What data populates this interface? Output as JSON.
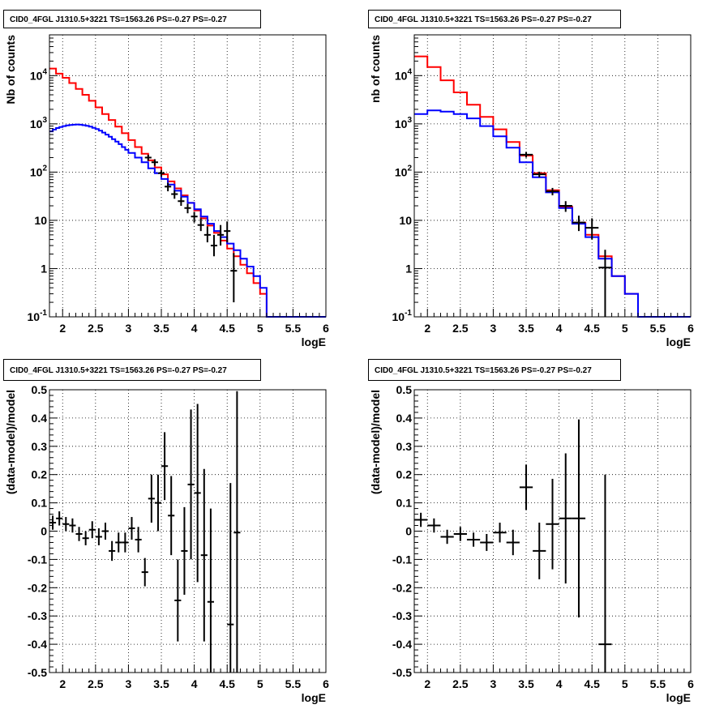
{
  "chart_data": [
    {
      "type": "line",
      "panel": "top-left",
      "title": "CID0_4FGL J1310.5+3221 TS=1563.26 PS=-0.27 PS=-0.27",
      "xlabel": "logE",
      "ylabel": "Nb of counts",
      "xlim": [
        1.8,
        6.0
      ],
      "ylim": [
        0.1,
        70000
      ],
      "yscale": "log",
      "grid": true,
      "x_ticks": [
        "2",
        "2.5",
        "3",
        "3.5",
        "4",
        "4.5",
        "5",
        "5.5",
        "6"
      ],
      "y_ticks": [
        "10^-1",
        "1",
        "10",
        "10^2",
        "10^3",
        "10^4"
      ],
      "series": [
        {
          "style": "step",
          "color": "#ff0000",
          "edges": [
            1.8,
            1.9,
            2.0,
            2.1,
            2.2,
            2.3,
            2.4,
            2.5,
            2.6,
            2.7,
            2.8,
            2.9,
            3.0,
            3.1,
            3.2,
            3.3,
            3.4,
            3.5,
            3.6,
            3.7,
            3.8,
            3.9,
            4.0,
            4.1,
            4.2,
            4.3,
            4.4,
            4.5,
            4.6,
            4.7,
            4.8,
            4.9,
            5.0,
            5.1,
            5.2,
            5.3,
            5.4,
            5.5,
            5.6,
            5.7,
            5.8,
            5.9,
            6.0
          ],
          "values": [
            14000,
            11000,
            9000,
            7000,
            5300,
            4000,
            3000,
            2200,
            1600,
            1200,
            880,
            640,
            460,
            330,
            240,
            175,
            125,
            90,
            64,
            46,
            33,
            23,
            16,
            11,
            7.8,
            5.5,
            3.8,
            2.6,
            1.8,
            1.2,
            0.8,
            0.5,
            0.3,
            0.1,
            0.1,
            0.1,
            0.1,
            0.1,
            0.1,
            0.1,
            0.1,
            0.1
          ]
        },
        {
          "style": "step",
          "color": "#0000ff",
          "edges": [
            1.8,
            1.85,
            1.9,
            1.95,
            2.0,
            2.05,
            2.1,
            2.15,
            2.2,
            2.25,
            2.3,
            2.35,
            2.4,
            2.45,
            2.5,
            2.55,
            2.6,
            2.65,
            2.7,
            2.75,
            2.8,
            2.85,
            2.9,
            2.95,
            3.0,
            3.1,
            3.2,
            3.3,
            3.4,
            3.5,
            3.6,
            3.7,
            3.8,
            3.9,
            4.0,
            4.1,
            4.2,
            4.3,
            4.4,
            4.5,
            4.6,
            4.7,
            4.8,
            4.9,
            5.0,
            5.1,
            5.2,
            5.3,
            5.4,
            5.5,
            5.6,
            5.7,
            5.8,
            5.9,
            6.0
          ],
          "values": [
            700,
            760,
            820,
            860,
            900,
            930,
            950,
            960,
            970,
            960,
            940,
            910,
            880,
            830,
            780,
            720,
            660,
            600,
            540,
            480,
            430,
            380,
            330,
            290,
            250,
            200,
            160,
            120,
            95,
            72,
            55,
            41,
            31,
            23,
            17,
            12,
            8.5,
            6,
            4.5,
            3.3,
            2.4,
            1.6,
            1.1,
            0.7,
            0.4,
            0.1,
            0.1,
            0.1,
            0.1,
            0.1,
            0.1,
            0.1,
            0.1,
            0.1
          ]
        },
        {
          "style": "errorbar",
          "color": "#000000",
          "x": [
            3.3,
            3.4,
            3.5,
            3.6,
            3.7,
            3.8,
            3.9,
            4.0,
            4.1,
            4.2,
            4.3,
            4.4,
            4.5,
            4.6
          ],
          "xerr": 0.05,
          "y": [
            200,
            160,
            95,
            50,
            35,
            25,
            18,
            12,
            8,
            5,
            3,
            5,
            6,
            0.9
          ],
          "yerr_low": [
            30,
            25,
            15,
            10,
            7,
            5,
            4,
            3,
            2,
            1.5,
            1.2,
            2,
            2.5,
            0.7
          ],
          "yerr_high": [
            30,
            25,
            15,
            10,
            7,
            5,
            4,
            3,
            3,
            2.5,
            2,
            3,
            3.5,
            1.2
          ]
        }
      ]
    },
    {
      "type": "line",
      "panel": "top-right",
      "title": "CID0_4FGL J1310.5+3221 TS=1563.26 PS=-0.27 PS=-0.27",
      "xlabel": "logE",
      "ylabel": "nb of counts",
      "xlim": [
        1.8,
        6.0
      ],
      "ylim": [
        0.1,
        70000
      ],
      "yscale": "log",
      "grid": true,
      "x_ticks": [
        "2",
        "2.5",
        "3",
        "3.5",
        "4",
        "4.5",
        "5",
        "5.5",
        "6"
      ],
      "y_ticks": [
        "10^-1",
        "1",
        "10",
        "10^2",
        "10^3",
        "10^4"
      ],
      "series": [
        {
          "style": "step",
          "color": "#ff0000",
          "edges": [
            1.8,
            2.0,
            2.2,
            2.4,
            2.6,
            2.8,
            3.0,
            3.2,
            3.4,
            3.6,
            3.8,
            4.0,
            4.2,
            4.4,
            4.6,
            4.8,
            5.0,
            5.2,
            5.4,
            5.6,
            5.8,
            6.0
          ],
          "values": [
            25000,
            15000,
            8000,
            4500,
            2500,
            1400,
            770,
            420,
            220,
            95,
            42,
            19,
            9,
            5,
            1.8,
            0.7,
            0.3,
            0.1,
            0.1,
            0.1,
            0.1
          ]
        },
        {
          "style": "step",
          "color": "#0000ff",
          "edges": [
            1.8,
            2.0,
            2.2,
            2.4,
            2.6,
            2.8,
            3.0,
            3.2,
            3.4,
            3.6,
            3.8,
            4.0,
            4.2,
            4.4,
            4.6,
            4.8,
            5.0,
            5.2,
            5.4,
            5.6,
            5.8,
            6.0
          ],
          "values": [
            1600,
            1900,
            1800,
            1600,
            1300,
            900,
            550,
            320,
            160,
            78,
            38,
            18,
            8.5,
            4.5,
            1.6,
            0.7,
            0.3,
            0.1,
            0.1,
            0.1,
            0.1
          ]
        },
        {
          "style": "errorbar",
          "color": "#000000",
          "x": [
            3.5,
            3.7,
            3.9,
            4.1,
            4.3,
            4.5,
            4.7
          ],
          "xerr": 0.1,
          "y": [
            230,
            90,
            40,
            20,
            9,
            7,
            1.05
          ],
          "yerr_low": [
            30,
            12,
            7,
            5,
            3,
            3,
            0.95
          ],
          "yerr_high": [
            30,
            12,
            7,
            5,
            3.5,
            4,
            1.4
          ]
        }
      ]
    },
    {
      "type": "scatter",
      "panel": "bottom-left",
      "title": "CID0_4FGL J1310.5+3221 TS=1563.26 PS=-0.27 PS=-0.27",
      "xlabel": "logE",
      "ylabel": "(data-model)/model",
      "xlim": [
        1.8,
        6.0
      ],
      "ylim": [
        -0.5,
        0.5
      ],
      "grid": true,
      "x_ticks": [
        "2",
        "2.5",
        "3",
        "3.5",
        "4",
        "4.5",
        "5",
        "5.5",
        "6"
      ],
      "y_ticks": [
        "-0.5",
        "-0.4",
        "-0.3",
        "-0.2",
        "-0.1",
        "0",
        "0.1",
        "0.2",
        "0.3",
        "0.4",
        "0.5"
      ],
      "series": [
        {
          "style": "errorbar",
          "color": "#000000",
          "xerr": 0.05,
          "x": [
            1.85,
            1.95,
            2.05,
            2.15,
            2.25,
            2.35,
            2.45,
            2.55,
            2.65,
            2.75,
            2.85,
            2.95,
            3.05,
            3.15,
            3.25,
            3.35,
            3.45,
            3.55,
            3.65,
            3.75,
            3.85,
            3.95,
            4.05,
            4.15,
            4.25,
            4.55,
            4.65
          ],
          "y": [
            0.03,
            0.045,
            0.025,
            0.02,
            -0.01,
            -0.025,
            0.005,
            -0.02,
            0,
            -0.07,
            -0.04,
            -0.04,
            0.01,
            -0.03,
            -0.145,
            0.115,
            0.1,
            0.23,
            0.055,
            -0.245,
            -0.07,
            0.165,
            0.135,
            -0.085,
            -0.25,
            -0.33,
            -0.005
          ],
          "yerr": [
            0.025,
            0.025,
            0.025,
            0.025,
            0.025,
            0.025,
            0.03,
            0.03,
            0.03,
            0.035,
            0.035,
            0.035,
            0.04,
            0.045,
            0.05,
            0.085,
            0.1,
            0.12,
            0.14,
            0.145,
            0.155,
            0.265,
            0.315,
            0.305,
            0.33,
            0.5,
            0.5
          ]
        }
      ]
    },
    {
      "type": "scatter",
      "panel": "bottom-right",
      "title": "CID0_4FGL J1310.5+3221 TS=1563.26 PS=-0.27 PS=-0.27",
      "xlabel": "logE",
      "ylabel": "(data-model)/model",
      "xlim": [
        1.8,
        6.0
      ],
      "ylim": [
        -0.5,
        0.5
      ],
      "grid": true,
      "x_ticks": [
        "2",
        "2.5",
        "3",
        "3.5",
        "4",
        "4.5",
        "5",
        "5.5",
        "6"
      ],
      "y_ticks": [
        "-0.5",
        "-0.4",
        "-0.3",
        "-0.2",
        "-0.1",
        "0",
        "0.1",
        "0.2",
        "0.3",
        "0.4",
        "0.5"
      ],
      "series": [
        {
          "style": "errorbar",
          "color": "#000000",
          "xerr": 0.1,
          "x": [
            1.9,
            2.1,
            2.3,
            2.5,
            2.7,
            2.9,
            3.1,
            3.3,
            3.5,
            3.7,
            3.9,
            4.1,
            4.3,
            4.7
          ],
          "y": [
            0.04,
            0.02,
            -0.02,
            -0.01,
            -0.03,
            -0.04,
            -0.005,
            -0.04,
            0.155,
            -0.07,
            0.025,
            0.045,
            0.045,
            -0.4
          ],
          "yerr": [
            0.025,
            0.025,
            0.025,
            0.025,
            0.025,
            0.03,
            0.035,
            0.045,
            0.08,
            0.1,
            0.16,
            0.23,
            0.35,
            0.6
          ]
        }
      ]
    }
  ]
}
